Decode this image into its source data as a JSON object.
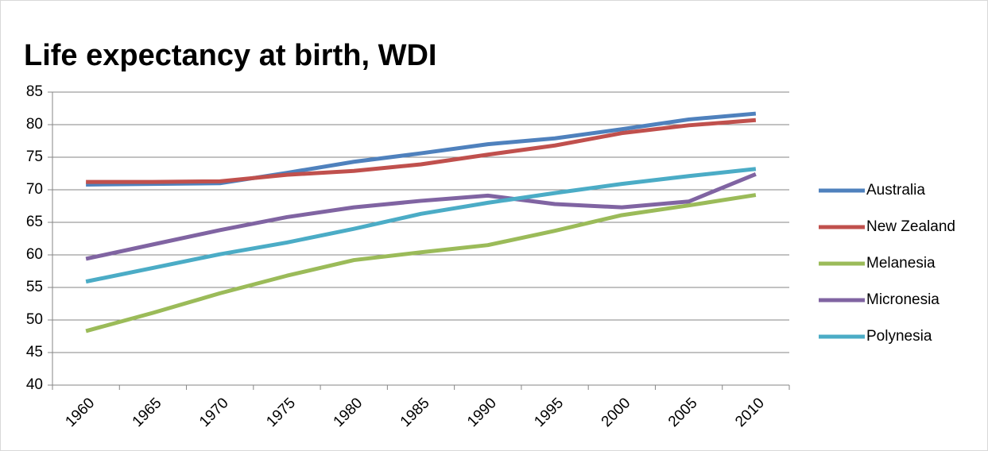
{
  "chart_data": {
    "type": "line",
    "title": "Life expectancy at birth, WDI",
    "categories": [
      "1960",
      "1965",
      "1970",
      "1975",
      "1980",
      "1985",
      "1990",
      "1995",
      "2000",
      "2005",
      "2010"
    ],
    "series": [
      {
        "name": "Australia",
        "color": "#4f81bd",
        "values": [
          70.8,
          70.9,
          71.0,
          72.6,
          74.3,
          75.6,
          77.0,
          77.9,
          79.3,
          80.8,
          81.7
        ]
      },
      {
        "name": "New Zealand",
        "color": "#c0504d",
        "values": [
          71.2,
          71.2,
          71.3,
          72.3,
          72.9,
          73.9,
          75.4,
          76.8,
          78.7,
          79.9,
          80.7
        ]
      },
      {
        "name": "Melanesia",
        "color": "#9bbb59",
        "values": [
          48.3,
          51.1,
          54.1,
          56.8,
          59.2,
          60.4,
          61.5,
          63.7,
          66.1,
          67.6,
          69.2
        ]
      },
      {
        "name": "Micronesia",
        "color": "#8064a2",
        "values": [
          59.4,
          61.6,
          63.8,
          65.8,
          67.3,
          68.3,
          69.1,
          67.8,
          67.3,
          68.2,
          72.4
        ]
      },
      {
        "name": "Polynesia",
        "color": "#4bacc6",
        "values": [
          55.9,
          58.0,
          60.1,
          61.9,
          64.0,
          66.3,
          68.0,
          69.5,
          70.9,
          72.1,
          73.2
        ]
      }
    ],
    "ylim": [
      40,
      85
    ],
    "yticks": [
      40,
      45,
      50,
      55,
      60,
      65,
      70,
      75,
      80,
      85
    ],
    "grid": true,
    "legend": "right"
  }
}
